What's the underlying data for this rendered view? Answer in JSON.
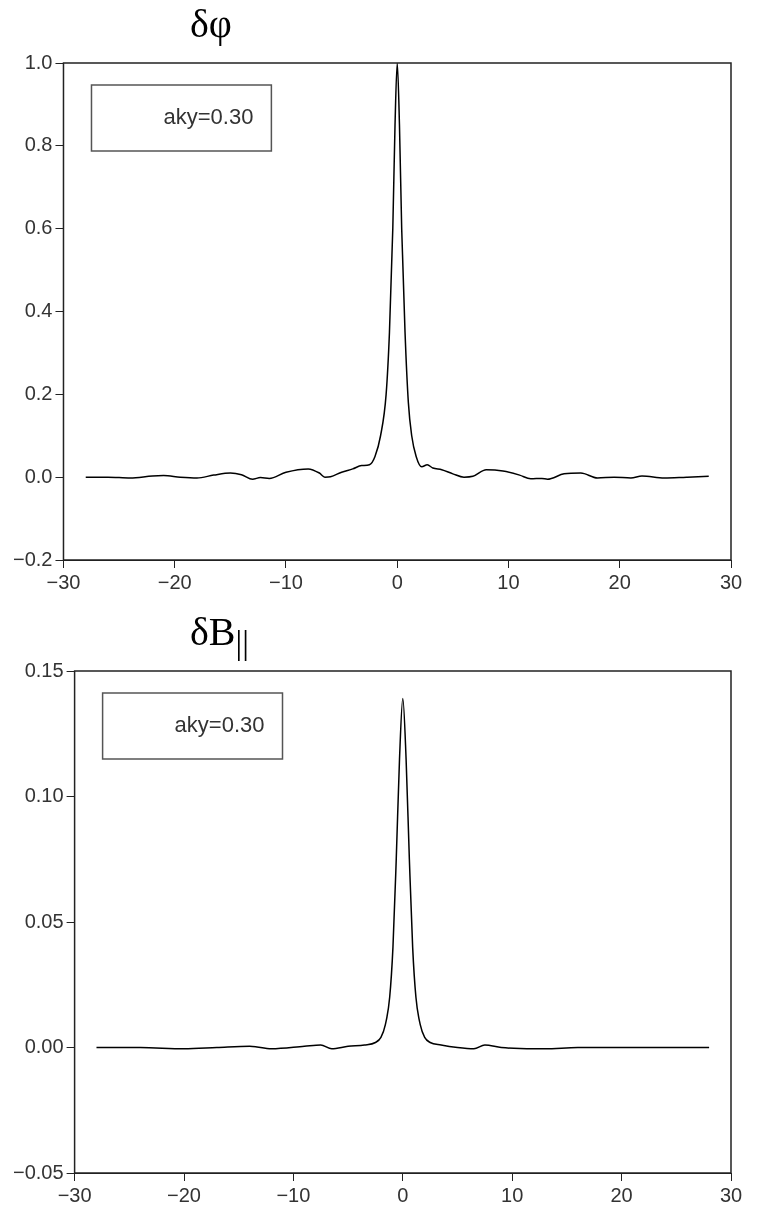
{
  "chart_data": [
    {
      "type": "line",
      "title": "δφ",
      "annotations": [
        "aky=0.30"
      ],
      "xlim": [
        -30,
        30
      ],
      "xticks": [
        -30,
        -20,
        -10,
        0,
        10,
        20,
        30
      ],
      "ylim": [
        -0.2,
        1.0
      ],
      "yticks": [
        {
          "value": -0.2,
          "label": "−0.2"
        },
        {
          "value": 0,
          "label": "0.0"
        },
        0.2,
        0.4,
        0.6,
        0.8,
        {
          "value": 1,
          "label": "1.0"
        }
      ],
      "grid": false,
      "legend": false,
      "marker": "none",
      "line_style": "solid",
      "series": [
        {
          "color": "#000000",
          "x": [
            -28,
            -26,
            -24,
            -22,
            -21,
            -19.5,
            -18,
            -16.5,
            -15,
            -14,
            -13,
            -12.3,
            -11.5,
            -10,
            -8,
            -7,
            -6.5,
            -6,
            -5,
            -4,
            -3.2,
            -2.5,
            -2,
            -1.5,
            -1,
            -0.7,
            -0.4,
            -0.2,
            0,
            0.2,
            0.4,
            0.7,
            1,
            1.3,
            1.7,
            2.2,
            2.7,
            3.2,
            4,
            5,
            6,
            6.8,
            8,
            9.5,
            11,
            12,
            13,
            13.5,
            15,
            16.5,
            18,
            19.5,
            21,
            22,
            24,
            26,
            28
          ],
          "values": [
            0.0,
            0.0,
            -0.002,
            0.003,
            0.004,
            0.0,
            -0.002,
            0.005,
            0.01,
            0.006,
            -0.005,
            -0.001,
            -0.003,
            0.012,
            0.02,
            0.01,
            0.0,
            0.001,
            0.012,
            0.02,
            0.028,
            0.03,
            0.05,
            0.1,
            0.2,
            0.35,
            0.6,
            0.85,
            1.0,
            0.85,
            0.6,
            0.35,
            0.18,
            0.1,
            0.05,
            0.025,
            0.03,
            0.022,
            0.018,
            0.008,
            0.0,
            0.002,
            0.018,
            0.015,
            0.005,
            -0.004,
            -0.003,
            -0.005,
            0.008,
            0.01,
            -0.002,
            0.0,
            -0.002,
            0.003,
            -0.002,
            0.0,
            0.002
          ]
        }
      ]
    },
    {
      "type": "line",
      "title": "δB$_{||}$",
      "annotations": [
        "aky=0.30"
      ],
      "xlim": [
        -30,
        30
      ],
      "xticks": [
        -30,
        -20,
        -10,
        0,
        10,
        20,
        30
      ],
      "ylim": [
        -0.05,
        0.15
      ],
      "yticks": [
        {
          "value": -0.05,
          "label": "−0.05"
        },
        {
          "value": 0,
          "label": "0.00"
        },
        {
          "value": 0.05,
          "label": "0.05"
        },
        {
          "value": 0.1,
          "label": "0.10"
        },
        {
          "value": 0.15,
          "label": "0.15"
        }
      ],
      "grid": false,
      "legend": false,
      "marker": "none",
      "line_style": "solid",
      "series": [
        {
          "color": "#000000",
          "x": [
            -28,
            -24,
            -20,
            -17,
            -14,
            -12,
            -9,
            -7.5,
            -6.5,
            -5,
            -3.5,
            -2.5,
            -2,
            -1.6,
            -1.2,
            -0.9,
            -0.6,
            -0.3,
            0,
            0.3,
            0.6,
            0.9,
            1.2,
            1.6,
            2,
            2.5,
            3.5,
            5,
            6.5,
            7.5,
            9,
            12,
            13,
            16,
            20,
            24,
            28
          ],
          "values": [
            0.0,
            0.0,
            -0.0005,
            0.0,
            0.0005,
            -0.0005,
            0.0005,
            0.001,
            -0.0005,
            0.0005,
            0.001,
            0.002,
            0.004,
            0.009,
            0.02,
            0.04,
            0.075,
            0.115,
            0.139,
            0.115,
            0.075,
            0.04,
            0.02,
            0.009,
            0.004,
            0.002,
            0.001,
            0.0,
            -0.0005,
            0.001,
            0.0,
            -0.0005,
            -0.0005,
            0.0,
            0.0,
            0.0,
            0.0
          ]
        }
      ]
    }
  ]
}
